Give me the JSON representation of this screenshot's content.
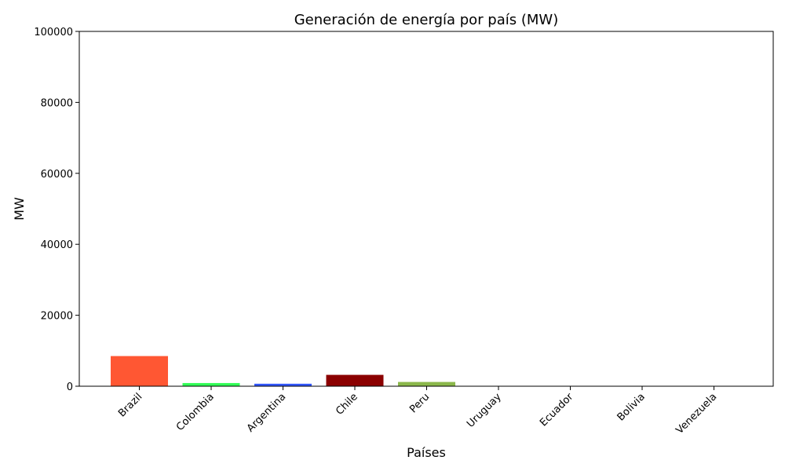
{
  "chart_data": {
    "type": "bar",
    "title": "Generación de energía por país (MW)",
    "xlabel": "Países",
    "ylabel": "MW",
    "ylim": [
      0,
      100000
    ],
    "yticks": [
      0,
      20000,
      40000,
      60000,
      80000,
      100000
    ],
    "grid": false,
    "categories": [
      "Brazil",
      "Colombia",
      "Argentina",
      "Chile",
      "Peru",
      "Uruguay",
      "Ecuador",
      "Bolivia",
      "Venezuela"
    ],
    "values": [
      8500,
      900,
      700,
      3200,
      1200,
      50,
      30,
      20,
      10
    ],
    "colors": [
      "#FF5733",
      "#33FF57",
      "#3357FF",
      "#8B0000",
      "#8BB84B",
      "#FF5733",
      "#33FF57",
      "#3357FF",
      "#8B0000"
    ]
  }
}
